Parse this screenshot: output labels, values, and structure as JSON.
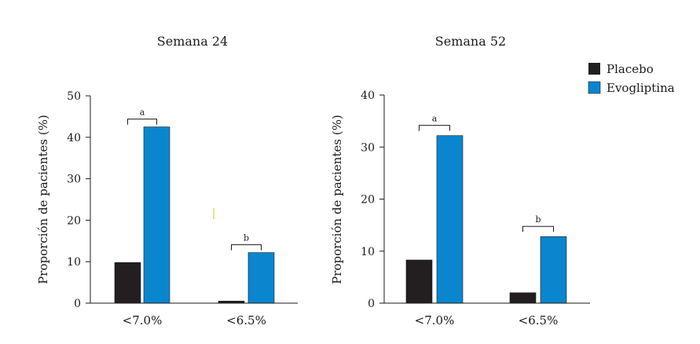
{
  "legend": [
    {
      "label": "Placebo",
      "color": "#231f20"
    },
    {
      "label": "Evogliptina",
      "color": "#0a86cf"
    }
  ],
  "chart_data": [
    {
      "type": "bar",
      "title": "Semana 24",
      "ylabel": "Proporción de pacientes (%)",
      "xlabel": "",
      "ylim": [
        0,
        50
      ],
      "yticks": [
        "0",
        "10",
        "20",
        "30",
        "40",
        "50"
      ],
      "categories": [
        "<7.0%",
        "<6.5%"
      ],
      "series": [
        {
          "name": "Placebo",
          "values": [
            9.8,
            0.5
          ]
        },
        {
          "name": "Evogliptina",
          "values": [
            42.5,
            12.2
          ]
        }
      ],
      "annotations": [
        "a",
        "b"
      ]
    },
    {
      "type": "bar",
      "title": "Semana 52",
      "ylabel": "Proporción de pacientes (%)",
      "xlabel": "",
      "ylim": [
        0,
        40
      ],
      "yticks": [
        "0",
        "10",
        "20",
        "30",
        "40"
      ],
      "categories": [
        "<7.0%",
        "<6.5%"
      ],
      "series": [
        {
          "name": "Placebo",
          "values": [
            8.3,
            2.0
          ]
        },
        {
          "name": "Evogliptina",
          "values": [
            32.2,
            12.8
          ]
        }
      ],
      "annotations": [
        "a",
        "b"
      ]
    }
  ]
}
